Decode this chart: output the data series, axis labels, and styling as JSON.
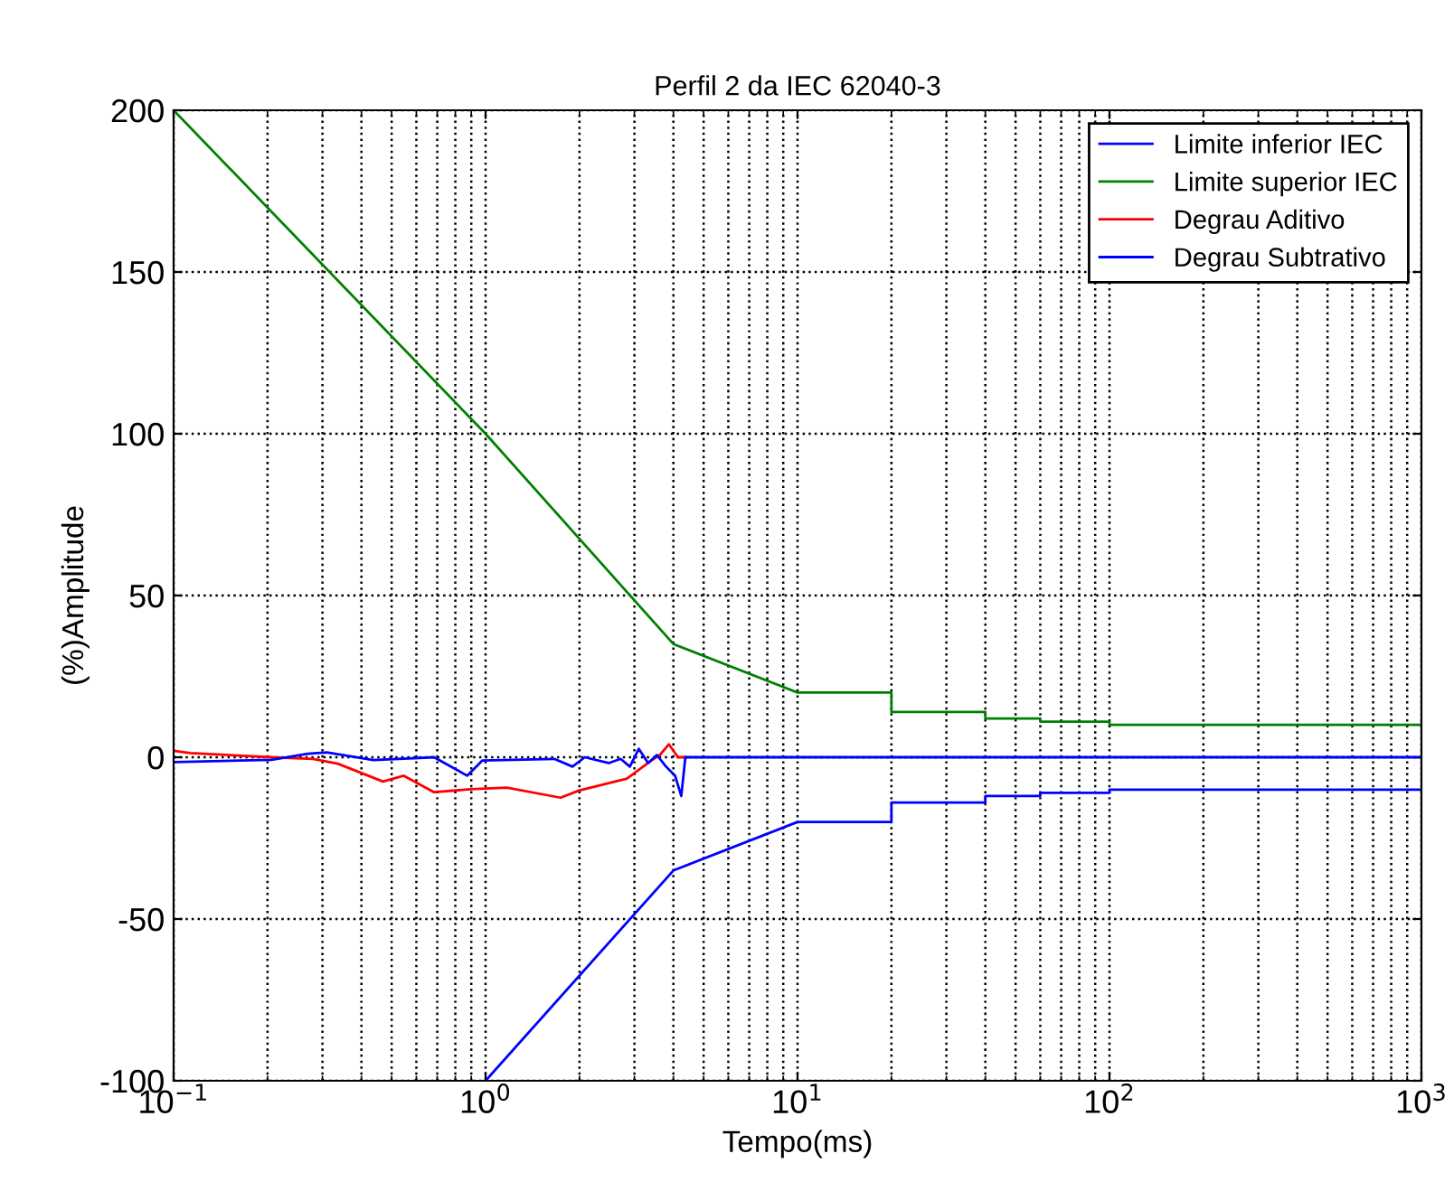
{
  "chart_data": {
    "type": "line",
    "title": "Perfil 2 da IEC 62040-3",
    "xlabel": "Tempo(ms)",
    "ylabel": "(%)Amplitude",
    "log": "x",
    "grid": true,
    "legend": "top right",
    "line_style": "solid",
    "marker": "none",
    "xlim": [
      0.1,
      1000
    ],
    "ylim": [
      -100,
      200
    ],
    "xticks": [
      {
        "value": 0.1,
        "label": "10$^{−1}$"
      },
      {
        "value": 1,
        "label": "10$^{0}$"
      },
      {
        "value": 10,
        "label": "10$^{1}$"
      },
      {
        "value": 100,
        "label": "10$^{2}$"
      },
      {
        "value": 1000,
        "label": "10$^{3}$"
      }
    ],
    "yticks": [
      -100,
      -50,
      0,
      50,
      100,
      150,
      200
    ],
    "series": [
      {
        "name": "Limite inferior IEC",
        "color": "#0000ff",
        "x": [
          1,
          4,
          10,
          20,
          20,
          40,
          40,
          60,
          60,
          100,
          100,
          1000
        ],
        "values": [
          -100,
          -35,
          -20,
          -20,
          -14,
          -14,
          -12,
          -12,
          -11,
          -11,
          -10,
          -10
        ]
      },
      {
        "name": "Limite superior IEC",
        "color": "#008000",
        "x": [
          0.1,
          1,
          4,
          10,
          20,
          20,
          40,
          40,
          60,
          60,
          100,
          100,
          1000
        ],
        "values": [
          200,
          100,
          35,
          20,
          20,
          14,
          14,
          12,
          12,
          11,
          11,
          10,
          10
        ]
      },
      {
        "name": "Degrau Aditivo",
        "color": "#ff0000",
        "x": [
          0.1,
          0.113,
          0.206,
          0.28,
          0.336,
          0.469,
          0.547,
          0.684,
          0.893,
          1.17,
          1.74,
          1.99,
          2.84,
          3.1,
          3.39,
          3.62,
          3.87,
          4.14,
          4.4
        ],
        "values": [
          2,
          1.3,
          0,
          -0.5,
          -2,
          -7.5,
          -5.7,
          -10.8,
          -9.9,
          -9.4,
          -12.5,
          -10.3,
          -6.6,
          -3.9,
          -1.1,
          0.7,
          4,
          0,
          0
        ]
      },
      {
        "name": "Degrau Subtrativo",
        "color": "#0000ff",
        "x": [
          0.1,
          0.206,
          0.269,
          0.31,
          0.437,
          0.684,
          0.873,
          0.977,
          1.66,
          1.9,
          2.08,
          2.48,
          2.71,
          2.9,
          3.1,
          3.32,
          3.54,
          3.79,
          4.05,
          4.24,
          4.37,
          1000
        ],
        "values": [
          -1.5,
          -0.8,
          1.1,
          1.5,
          -0.9,
          0,
          -5.7,
          -1,
          -0.5,
          -2.9,
          0,
          -1.8,
          -0.5,
          -2.9,
          2.6,
          -1.8,
          0.7,
          -2.9,
          -5.7,
          -12,
          0,
          0
        ]
      }
    ]
  }
}
